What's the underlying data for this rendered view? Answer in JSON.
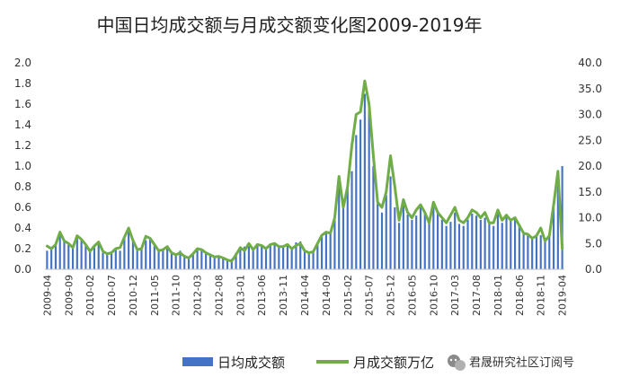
{
  "chart_data": {
    "type": "bar+line",
    "title": "中国日均成交额与月成交额变化图2009-2019年",
    "y_left": {
      "ticks": [
        "0.0",
        "0.2",
        "0.4",
        "0.6",
        "0.8",
        "1.0",
        "1.2",
        "1.4",
        "1.6",
        "1.8",
        "2.0"
      ],
      "lim": [
        0,
        2.0
      ]
    },
    "y_right": {
      "ticks": [
        "0.0",
        "5.0",
        "10.0",
        "15.0",
        "20.0",
        "25.0",
        "30.0",
        "35.0",
        "40.0"
      ],
      "lim": [
        0,
        40
      ]
    },
    "x_tick_labels": [
      "2009-04",
      "2009-09",
      "2010-02",
      "2010-07",
      "2010-12",
      "2011-05",
      "2011-10",
      "2012-03",
      "2012-08",
      "2013-01",
      "2013-06",
      "2013-11",
      "2014-04",
      "2014-09",
      "2015-02",
      "2015-07",
      "2015-12",
      "2016-05",
      "2016-10",
      "2017-03",
      "2017-08",
      "2018-01",
      "2018-06",
      "2018-11",
      "2019-04"
    ],
    "months": [
      "2009-04",
      "2009-05",
      "2009-06",
      "2009-07",
      "2009-08",
      "2009-09",
      "2009-10",
      "2009-11",
      "2009-12",
      "2010-01",
      "2010-02",
      "2010-03",
      "2010-04",
      "2010-05",
      "2010-06",
      "2010-07",
      "2010-08",
      "2010-09",
      "2010-10",
      "2010-11",
      "2010-12",
      "2011-01",
      "2011-02",
      "2011-03",
      "2011-04",
      "2011-05",
      "2011-06",
      "2011-07",
      "2011-08",
      "2011-09",
      "2011-10",
      "2011-11",
      "2011-12",
      "2012-01",
      "2012-02",
      "2012-03",
      "2012-04",
      "2012-05",
      "2012-06",
      "2012-07",
      "2012-08",
      "2012-09",
      "2012-10",
      "2012-11",
      "2012-12",
      "2013-01",
      "2013-02",
      "2013-03",
      "2013-04",
      "2013-05",
      "2013-06",
      "2013-07",
      "2013-08",
      "2013-09",
      "2013-10",
      "2013-11",
      "2013-12",
      "2014-01",
      "2014-02",
      "2014-03",
      "2014-04",
      "2014-05",
      "2014-06",
      "2014-07",
      "2014-08",
      "2014-09",
      "2014-10",
      "2014-11",
      "2014-12",
      "2015-01",
      "2015-02",
      "2015-03",
      "2015-04",
      "2015-05",
      "2015-06",
      "2015-07",
      "2015-08",
      "2015-09",
      "2015-10",
      "2015-11",
      "2015-12",
      "2016-01",
      "2016-02",
      "2016-03",
      "2016-04",
      "2016-05",
      "2016-06",
      "2016-07",
      "2016-08",
      "2016-09",
      "2016-10",
      "2016-11",
      "2016-12",
      "2017-01",
      "2017-02",
      "2017-03",
      "2017-04",
      "2017-05",
      "2017-06",
      "2017-07",
      "2017-08",
      "2017-09",
      "2017-10",
      "2017-11",
      "2017-12",
      "2018-01",
      "2018-02",
      "2018-03",
      "2018-04",
      "2018-05",
      "2018-06",
      "2018-07",
      "2018-08",
      "2018-09",
      "2018-10",
      "2018-11",
      "2018-12",
      "2019-01",
      "2019-02",
      "2019-03",
      "2019-04"
    ],
    "series": [
      {
        "name": "日均成交额",
        "axis": "left",
        "type": "bar",
        "color": "#4472c4",
        "values": [
          0.18,
          0.2,
          0.23,
          0.36,
          0.28,
          0.24,
          0.22,
          0.3,
          0.28,
          0.24,
          0.2,
          0.22,
          0.25,
          0.16,
          0.14,
          0.15,
          0.2,
          0.18,
          0.32,
          0.4,
          0.27,
          0.18,
          0.2,
          0.28,
          0.3,
          0.24,
          0.18,
          0.2,
          0.22,
          0.17,
          0.15,
          0.18,
          0.14,
          0.12,
          0.15,
          0.2,
          0.18,
          0.16,
          0.14,
          0.12,
          0.13,
          0.12,
          0.1,
          0.1,
          0.16,
          0.2,
          0.22,
          0.24,
          0.18,
          0.25,
          0.24,
          0.2,
          0.24,
          0.26,
          0.22,
          0.22,
          0.24,
          0.2,
          0.26,
          0.27,
          0.18,
          0.16,
          0.18,
          0.25,
          0.32,
          0.36,
          0.35,
          0.52,
          0.8,
          0.65,
          0.8,
          0.95,
          1.3,
          1.45,
          1.7,
          1.55,
          1.0,
          0.65,
          0.55,
          0.72,
          0.9,
          0.6,
          0.45,
          0.62,
          0.53,
          0.48,
          0.52,
          0.6,
          0.55,
          0.45,
          0.6,
          0.57,
          0.48,
          0.42,
          0.46,
          0.55,
          0.44,
          0.42,
          0.48,
          0.54,
          0.52,
          0.48,
          0.5,
          0.44,
          0.42,
          0.56,
          0.45,
          0.52,
          0.47,
          0.5,
          0.42,
          0.35,
          0.34,
          0.31,
          0.32,
          0.33,
          0.29,
          0.33,
          0.6,
          0.8,
          1.0
        ]
      },
      {
        "name": "月成交额万亿",
        "axis": "right",
        "type": "line",
        "color": "#70ad47",
        "values": [
          4.5,
          4.0,
          4.8,
          7.2,
          5.5,
          5.0,
          4.2,
          6.5,
          5.8,
          4.8,
          3.5,
          4.5,
          5.3,
          3.5,
          3.0,
          3.2,
          4.0,
          4.2,
          6.2,
          8.0,
          5.6,
          3.8,
          4.0,
          6.4,
          6.0,
          4.8,
          3.6,
          3.8,
          4.4,
          3.2,
          2.8,
          3.2,
          2.5,
          2.2,
          3.0,
          4.0,
          3.8,
          3.2,
          2.8,
          2.4,
          2.5,
          2.2,
          1.8,
          1.6,
          2.8,
          4.2,
          3.6,
          5.0,
          3.8,
          4.8,
          4.6,
          4.0,
          4.8,
          5.0,
          4.4,
          4.4,
          4.8,
          4.0,
          4.6,
          5.0,
          3.6,
          3.2,
          3.4,
          5.0,
          6.6,
          7.2,
          7.0,
          10.0,
          18.0,
          12.0,
          16.0,
          24.0,
          30.0,
          30.5,
          36.5,
          32.0,
          22.0,
          13.0,
          12.0,
          15.0,
          22.0,
          16.0,
          9.5,
          13.5,
          11.0,
          10.0,
          11.5,
          12.5,
          11.0,
          9.0,
          13.0,
          11.0,
          10.0,
          9.0,
          10.5,
          12.0,
          9.5,
          9.0,
          10.0,
          11.5,
          11.0,
          10.0,
          11.0,
          9.0,
          9.0,
          11.5,
          9.5,
          10.5,
          9.5,
          10.0,
          8.5,
          7.0,
          6.8,
          6.0,
          6.5,
          8.0,
          5.5,
          6.5,
          12.5,
          19.0,
          4.0
        ]
      }
    ],
    "legend": {
      "placement": "bottom",
      "entries": [
        "日均成交额",
        "月成交额万亿"
      ]
    },
    "grid": false
  },
  "watermark": {
    "text": "君晟研究社区订阅号",
    "icon": "wechat-icon"
  }
}
